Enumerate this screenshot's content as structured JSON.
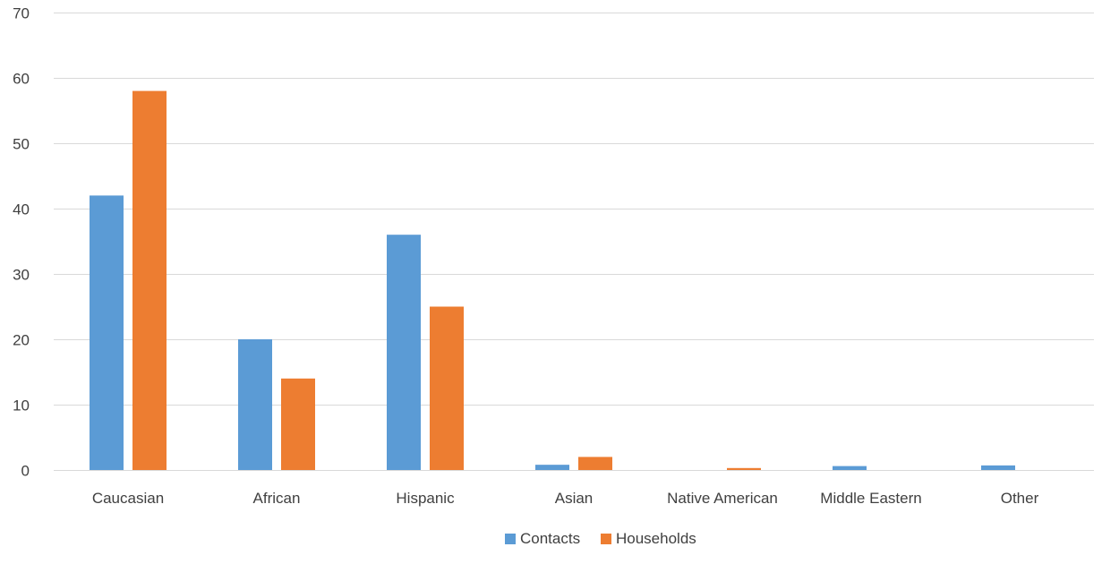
{
  "chart_data": {
    "type": "bar",
    "title": "",
    "xlabel": "",
    "ylabel": "",
    "categories": [
      "Caucasian",
      "African",
      "Hispanic",
      "Asian",
      "Native American",
      "Middle Eastern",
      "Other"
    ],
    "series": [
      {
        "name": "Contacts",
        "color": "#5b9bd5",
        "values": [
          42,
          20,
          36,
          0.8,
          0,
          0.6,
          0.7
        ]
      },
      {
        "name": "Households",
        "color": "#ed7d31",
        "values": [
          58,
          14,
          25,
          2,
          0.3,
          0,
          0
        ]
      }
    ],
    "ylim": [
      0,
      70
    ],
    "yticks": [
      0,
      10,
      20,
      30,
      40,
      50,
      60,
      70
    ],
    "grid": true,
    "legend_position": "bottom"
  }
}
